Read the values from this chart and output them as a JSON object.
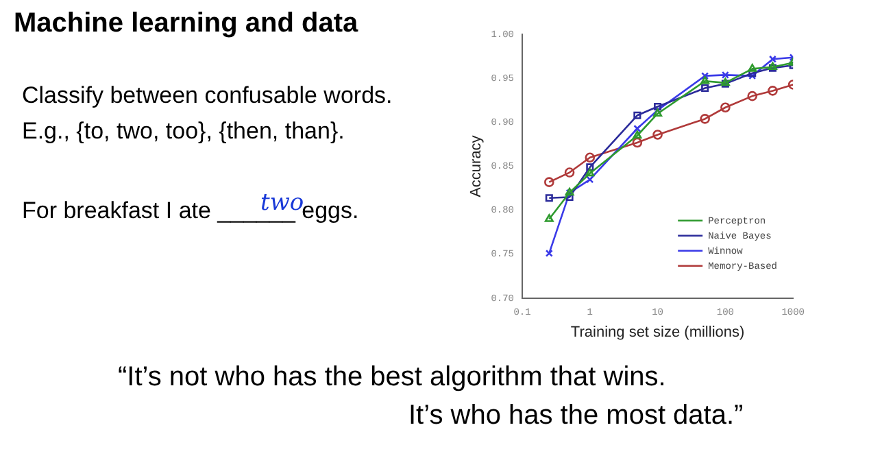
{
  "chart_data": {
    "type": "line",
    "title": "Machine learning and data",
    "annotations": [
      "Classify between confusable words.",
      "E.g., {to, two, too}, {then, than}.",
      "For breakfast I ate ______ eggs.",
      "two",
      "“It’s not who has the best algorithm that wins.",
      "It’s who has the most data.”"
    ],
    "xlabel": "Training set size (millions)",
    "ylabel": "Accuracy",
    "x": [
      0.25,
      0.5,
      1,
      5,
      10,
      50,
      100,
      250,
      500,
      1000
    ],
    "series": [
      {
        "name": "Perceptron",
        "color": "#2e9a2e",
        "marker": "triangle",
        "values": [
          0.79,
          0.82,
          0.842,
          0.885,
          0.91,
          0.947,
          0.945,
          0.961,
          0.963,
          0.968
        ]
      },
      {
        "name": "Naive Bayes",
        "color": "#2b2b9a",
        "marker": "square",
        "values": [
          0.814,
          0.815,
          0.849,
          0.908,
          0.918,
          0.939,
          0.944,
          0.956,
          0.962,
          0.965
        ]
      },
      {
        "name": "Winnow",
        "color": "#3a3ae8",
        "marker": "cross",
        "values": [
          0.751,
          0.82,
          0.835,
          0.893,
          0.914,
          0.953,
          0.954,
          0.953,
          0.972,
          0.974
        ]
      },
      {
        "name": "Memory-Based",
        "color": "#b03a3a",
        "marker": "circle",
        "values": [
          0.832,
          0.843,
          0.86,
          0.877,
          0.886,
          0.904,
          0.917,
          0.93,
          0.936,
          0.943
        ]
      }
    ],
    "log": "x",
    "xlim": [
      0.1,
      1000
    ],
    "xticks": [
      0.1,
      1,
      10,
      100,
      1000
    ],
    "ylim": [
      0.7,
      1.0
    ],
    "yticks": [
      {
        "value": 0.7,
        "label": "0.70"
      },
      {
        "value": 0.75,
        "label": "0.75"
      },
      {
        "value": 0.8,
        "label": "0.80"
      },
      {
        "value": 0.85,
        "label": "0.85"
      },
      {
        "value": 0.9,
        "label": "0.90"
      },
      {
        "value": 0.95,
        "label": "0.95"
      },
      {
        "value": 1.0,
        "label": "1.00"
      }
    ],
    "grid": false,
    "legend": "bottom right",
    "line_style": "solid"
  }
}
